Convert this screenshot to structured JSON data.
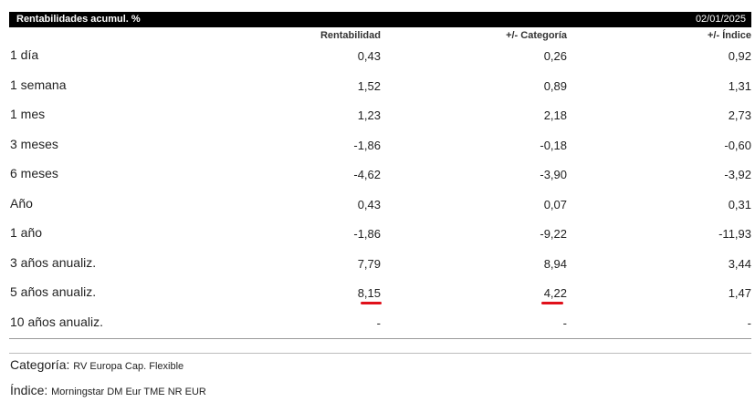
{
  "header": {
    "title": "Rentabilidades acumul. %",
    "date": "02/01/2025"
  },
  "columns": {
    "c1": "Rentabilidad",
    "c2": "+/- Categoría",
    "c3": "+/- Índice"
  },
  "rows": [
    {
      "label": "1 día",
      "v1": "0,43",
      "v2": "0,26",
      "v3": "0,92"
    },
    {
      "label": "1 semana",
      "v1": "1,52",
      "v2": "0,89",
      "v3": "1,31"
    },
    {
      "label": "1 mes",
      "v1": "1,23",
      "v2": "2,18",
      "v3": "2,73"
    },
    {
      "label": "3 meses",
      "v1": "-1,86",
      "v2": "-0,18",
      "v3": "-0,60"
    },
    {
      "label": "6 meses",
      "v1": "-4,62",
      "v2": "-3,90",
      "v3": "-3,92"
    },
    {
      "label": "Año",
      "v1": "0,43",
      "v2": "0,07",
      "v3": "0,31"
    },
    {
      "label": "1 año",
      "v1": "-1,86",
      "v2": "-9,22",
      "v3": "-11,93"
    },
    {
      "label": "3 años anualiz.",
      "v1": "7,79",
      "v2": "8,94",
      "v3": "3,44"
    },
    {
      "label": "5 años anualiz.",
      "v1": "8,15",
      "v2": "4,22",
      "v3": "1,47"
    },
    {
      "label": "10 años anualiz.",
      "v1": "-",
      "v2": "-",
      "v3": "-"
    }
  ],
  "footer": {
    "categoria_label": "Categoría:",
    "categoria_value": "RV Europa Cap. Flexible",
    "indice_label": "Índice:",
    "indice_value": "Morningstar DM Eur TME NR EUR"
  },
  "colors": {
    "header_bg": "#000000",
    "annotation": "#e0101a"
  }
}
